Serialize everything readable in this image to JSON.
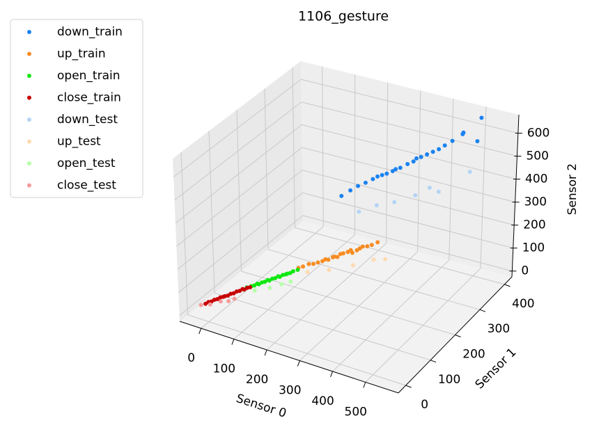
{
  "chart_data": {
    "type": "scatter3d",
    "title": "1106_gesture",
    "xlabel": "Sensor 0",
    "ylabel": "Sensor 1",
    "zlabel": "Sensor 2",
    "xlim": [
      -65,
      600
    ],
    "ylim": [
      -30,
      430
    ],
    "zlim": [
      -25,
      680
    ],
    "xticks": [
      0,
      100,
      200,
      300,
      400,
      500
    ],
    "yticks": [
      0,
      100,
      200,
      300,
      400
    ],
    "zticks": [
      0,
      100,
      200,
      300,
      400,
      500,
      600
    ],
    "grid": true,
    "legend": "upper left",
    "series": [
      {
        "name": "down_train",
        "color": "#1a82f0",
        "x": [
          255,
          270,
          285,
          300,
          310,
          320,
          330,
          340,
          350,
          355,
          365,
          375,
          385,
          390,
          400,
          410,
          420,
          430,
          440,
          455,
          470,
          480,
          495,
          500
        ],
        "y": [
          190,
          205,
          215,
          225,
          240,
          245,
          250,
          255,
          265,
          270,
          275,
          290,
          300,
          305,
          310,
          320,
          330,
          340,
          350,
          360,
          380,
          370,
          420,
          400
        ],
        "z": [
          440,
          455,
          470,
          480,
          485,
          495,
          500,
          505,
          510,
          515,
          520,
          525,
          530,
          540,
          545,
          550,
          555,
          560,
          570,
          585,
          600,
          620,
          640,
          560
        ]
      },
      {
        "name": "up_train",
        "color": "#f88c22",
        "x": [
          130,
          140,
          150,
          160,
          170,
          180,
          185,
          190,
          200,
          205,
          210,
          215,
          220,
          230,
          235,
          240,
          250,
          255,
          260,
          270,
          280,
          290
        ],
        "y": [
          180,
          185,
          195,
          200,
          205,
          210,
          215,
          220,
          225,
          225,
          230,
          235,
          240,
          245,
          250,
          250,
          255,
          260,
          265,
          270,
          275,
          285
        ],
        "z": [
          90,
          95,
          100,
          100,
          105,
          110,
          115,
          110,
          120,
          125,
          120,
          130,
          130,
          135,
          140,
          130,
          140,
          145,
          150,
          150,
          155,
          160
        ]
      },
      {
        "name": "open_train",
        "color": "#10e810",
        "x": [
          40,
          50,
          55,
          60,
          65,
          70,
          75,
          80,
          85,
          90,
          95,
          100,
          105,
          110,
          115,
          120,
          125,
          130,
          140
        ],
        "y": [
          95,
          100,
          105,
          110,
          110,
          115,
          120,
          125,
          125,
          130,
          135,
          140,
          140,
          145,
          150,
          150,
          155,
          160,
          165
        ],
        "z": [
          50,
          55,
          55,
          60,
          60,
          65,
          65,
          70,
          70,
          75,
          75,
          80,
          80,
          85,
          85,
          90,
          90,
          95,
          100
        ]
      },
      {
        "name": "close_train",
        "color": "#c80000",
        "x": [
          -30,
          -25,
          -20,
          -15,
          -10,
          -5,
          0,
          5,
          10,
          15,
          20,
          25,
          30,
          35,
          40,
          45,
          50
        ],
        "y": [
          25,
          30,
          35,
          40,
          45,
          50,
          55,
          55,
          60,
          65,
          70,
          75,
          80,
          85,
          85,
          90,
          95
        ],
        "z": [
          15,
          20,
          20,
          25,
          25,
          30,
          30,
          35,
          35,
          40,
          40,
          45,
          45,
          50,
          50,
          55,
          55
        ]
      },
      {
        "name": "down_test",
        "color": "#b3d4f5",
        "x": [
          300,
          330,
          360,
          400,
          420,
          440,
          480
        ],
        "y": [
          200,
          230,
          260,
          290,
          320,
          330,
          400
        ],
        "z": [
          380,
          390,
          385,
          400,
          410,
          390,
          420
        ]
      },
      {
        "name": "up_test",
        "color": "#ffd9b0",
        "x": [
          150,
          200,
          250,
          290,
          310
        ],
        "y": [
          190,
          210,
          240,
          270,
          290
        ],
        "z": [
          70,
          80,
          90,
          100,
          90
        ]
      },
      {
        "name": "open_test",
        "color": "#b5ffa8",
        "x": [
          60,
          90,
          110,
          130
        ],
        "y": [
          100,
          120,
          140,
          150
        ],
        "z": [
          40,
          45,
          50,
          60
        ]
      },
      {
        "name": "close_test",
        "color": "#f59a9a",
        "x": [
          -40,
          -20,
          0,
          20,
          30
        ],
        "y": [
          20,
          30,
          45,
          50,
          60
        ],
        "z": [
          10,
          12,
          20,
          25,
          30
        ]
      }
    ]
  }
}
